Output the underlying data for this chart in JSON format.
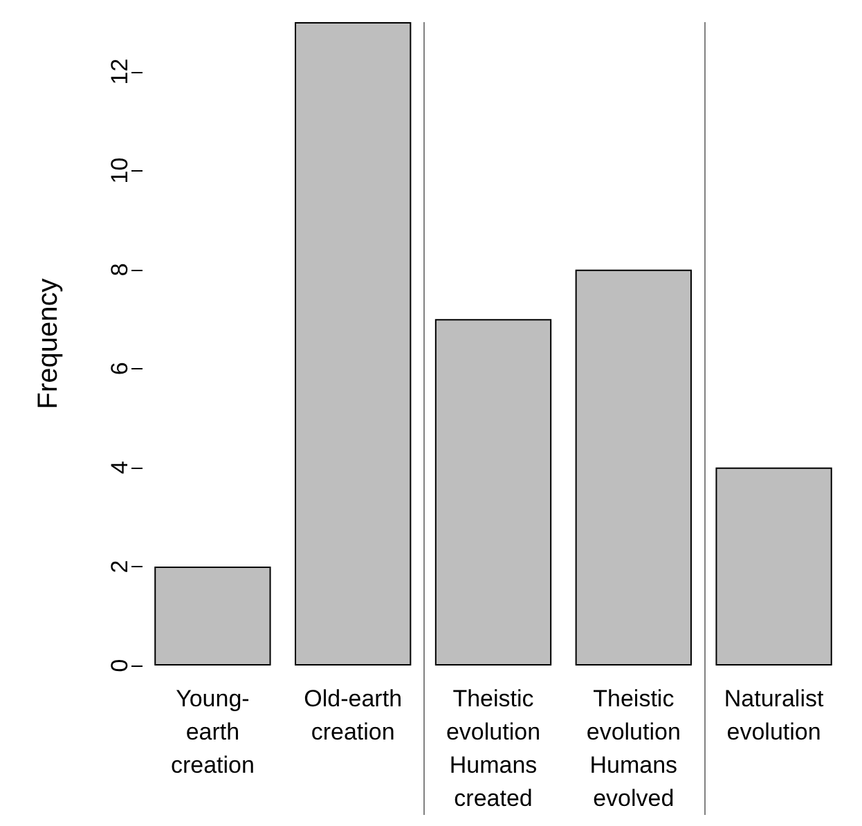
{
  "chart_data": {
    "type": "bar",
    "ylabel": "Frequency",
    "categories": [
      "Young-\nearth\ncreation",
      "Old-earth\ncreation",
      "Theistic\nevolution\nHumans\ncreated",
      "Theistic\nevolution\nHumans\nevolved",
      "Naturalist\nevolution"
    ],
    "values": [
      2,
      13,
      7,
      8,
      4
    ],
    "color": "#bebebe",
    "ylim": [
      0,
      13
    ],
    "yticks": [
      0,
      2,
      4,
      6,
      8,
      10,
      12
    ],
    "grid": false
  }
}
